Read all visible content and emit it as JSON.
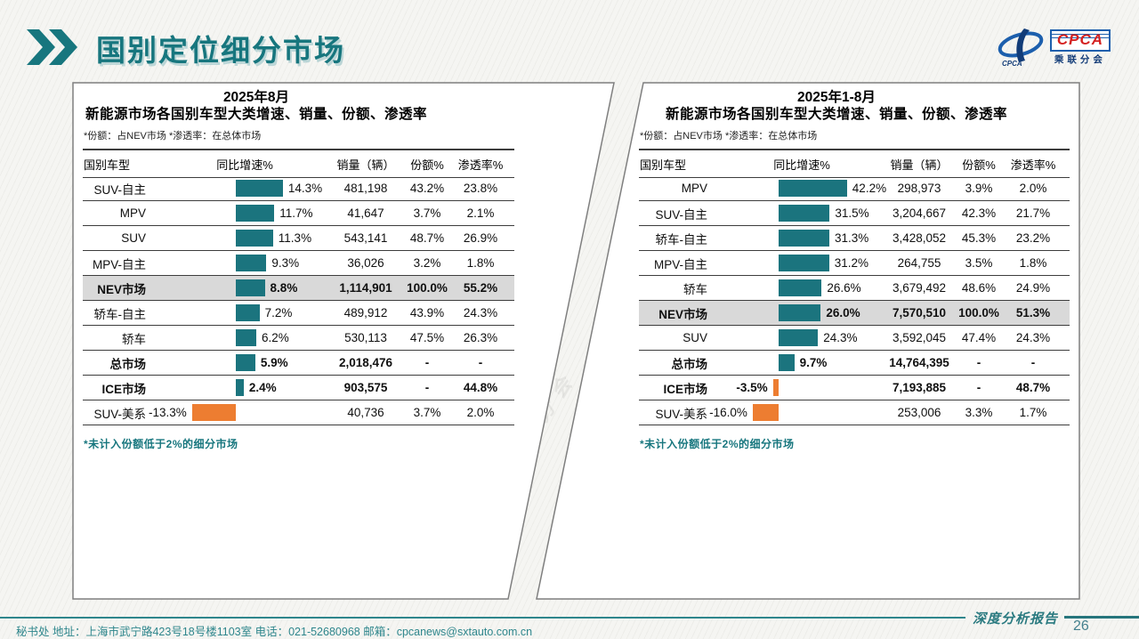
{
  "page": {
    "title": "国别定位细分市场",
    "page_number": "26",
    "report_badge": "深度分析报告",
    "footer_text": "秘书处   地址：上海市武宁路423号18号楼1103室  电话：021-52680968   邮箱：cpcanews@sxtauto.com.cn",
    "watermark": "CPCA",
    "watermark_sub": "乘联分会",
    "logo": {
      "text": "CPCA",
      "subtext": "乘联分会"
    }
  },
  "colors": {
    "accent_teal": "#17767E",
    "bar_positive": "#1B747E",
    "bar_negative": "#ED7D31",
    "highlight_row_bg": "#D9D9D9",
    "footer_teal": "#2E868C",
    "logo_blue": "#1C5FAD",
    "logo_red": "#D42121"
  },
  "chart_data": [
    {
      "type": "table",
      "period": "2025年8月",
      "title_line1": "2025年8月",
      "title_line2": "新能源市场各国别车型大类增速、销量、份额、渗透率",
      "note": "*份额：占NEV市场  *渗透率：在总体市场",
      "footnote": "*未计入份额低于2%的细分市场",
      "columns": [
        "国别车型",
        "同比增速%",
        "销量（辆）",
        "份额%",
        "渗透率%"
      ],
      "bar_column": "同比增速%",
      "bar_unit": "%",
      "rows": [
        {
          "label": "SUV-自主",
          "growth": 14.3,
          "growth_label": "14.3%",
          "sales": "481,198",
          "share": "43.2%",
          "penetration": "23.8%",
          "bold": false,
          "highlight": false
        },
        {
          "label": "MPV",
          "growth": 11.7,
          "growth_label": "11.7%",
          "sales": "41,647",
          "share": "3.7%",
          "penetration": "2.1%",
          "bold": false,
          "highlight": false
        },
        {
          "label": "SUV",
          "growth": 11.3,
          "growth_label": "11.3%",
          "sales": "543,141",
          "share": "48.7%",
          "penetration": "26.9%",
          "bold": false,
          "highlight": false
        },
        {
          "label": "MPV-自主",
          "growth": 9.3,
          "growth_label": "9.3%",
          "sales": "36,026",
          "share": "3.2%",
          "penetration": "1.8%",
          "bold": false,
          "highlight": false
        },
        {
          "label": "NEV市场",
          "growth": 8.8,
          "growth_label": "8.8%",
          "sales": "1,114,901",
          "share": "100.0%",
          "penetration": "55.2%",
          "bold": true,
          "highlight": true
        },
        {
          "label": "轿车-自主",
          "growth": 7.2,
          "growth_label": "7.2%",
          "sales": "489,912",
          "share": "43.9%",
          "penetration": "24.3%",
          "bold": false,
          "highlight": false
        },
        {
          "label": "轿车",
          "growth": 6.2,
          "growth_label": "6.2%",
          "sales": "530,113",
          "share": "47.5%",
          "penetration": "26.3%",
          "bold": false,
          "highlight": false
        },
        {
          "label": "总市场",
          "growth": 5.9,
          "growth_label": "5.9%",
          "sales": "2,018,476",
          "share": "-",
          "penetration": "-",
          "bold": true,
          "highlight": false
        },
        {
          "label": "ICE市场",
          "growth": 2.4,
          "growth_label": "2.4%",
          "sales": "903,575",
          "share": "-",
          "penetration": "44.8%",
          "bold": true,
          "highlight": false
        },
        {
          "label": "SUV-美系",
          "growth": -13.3,
          "growth_label": "-13.3%",
          "sales": "40,736",
          "share": "3.7%",
          "penetration": "2.0%",
          "bold": false,
          "highlight": false
        }
      ]
    },
    {
      "type": "table",
      "period": "2025年1-8月",
      "title_line1": "2025年1-8月",
      "title_line2": "新能源市场各国别车型大类增速、销量、份额、渗透率",
      "note": "*份额：占NEV市场  *渗透率：在总体市场",
      "footnote": "*未计入份额低于2%的细分市场",
      "columns": [
        "国别车型",
        "同比增速%",
        "销量（辆）",
        "份额%",
        "渗透率%"
      ],
      "bar_column": "同比增速%",
      "bar_unit": "%",
      "rows": [
        {
          "label": "MPV",
          "growth": 42.2,
          "growth_label": "42.2%",
          "sales": "298,973",
          "share": "3.9%",
          "penetration": "2.0%",
          "bold": false,
          "highlight": false
        },
        {
          "label": "SUV-自主",
          "growth": 31.5,
          "growth_label": "31.5%",
          "sales": "3,204,667",
          "share": "42.3%",
          "penetration": "21.7%",
          "bold": false,
          "highlight": false
        },
        {
          "label": "轿车-自主",
          "growth": 31.3,
          "growth_label": "31.3%",
          "sales": "3,428,052",
          "share": "45.3%",
          "penetration": "23.2%",
          "bold": false,
          "highlight": false
        },
        {
          "label": "MPV-自主",
          "growth": 31.2,
          "growth_label": "31.2%",
          "sales": "264,755",
          "share": "3.5%",
          "penetration": "1.8%",
          "bold": false,
          "highlight": false
        },
        {
          "label": "轿车",
          "growth": 26.6,
          "growth_label": "26.6%",
          "sales": "3,679,492",
          "share": "48.6%",
          "penetration": "24.9%",
          "bold": false,
          "highlight": false
        },
        {
          "label": "NEV市场",
          "growth": 26.0,
          "growth_label": "26.0%",
          "sales": "7,570,510",
          "share": "100.0%",
          "penetration": "51.3%",
          "bold": true,
          "highlight": true
        },
        {
          "label": "SUV",
          "growth": 24.3,
          "growth_label": "24.3%",
          "sales": "3,592,045",
          "share": "47.4%",
          "penetration": "24.3%",
          "bold": false,
          "highlight": false
        },
        {
          "label": "总市场",
          "growth": 9.7,
          "growth_label": "9.7%",
          "sales": "14,764,395",
          "share": "-",
          "penetration": "-",
          "bold": true,
          "highlight": false
        },
        {
          "label": "ICE市场",
          "growth": -3.5,
          "growth_label": "-3.5%",
          "sales": "7,193,885",
          "share": "-",
          "penetration": "48.7%",
          "bold": true,
          "highlight": false
        },
        {
          "label": "SUV-美系",
          "growth": -16.0,
          "growth_label": "-16.0%",
          "sales": "253,006",
          "share": "3.3%",
          "penetration": "1.7%",
          "bold": false,
          "highlight": false
        }
      ]
    }
  ]
}
